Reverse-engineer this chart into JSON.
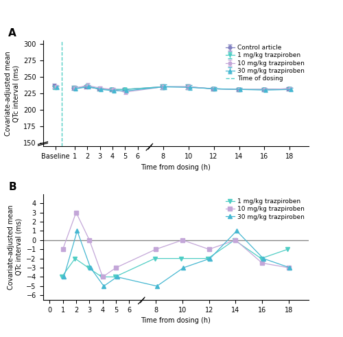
{
  "panel_A": {
    "x_hours": [
      1,
      2,
      3,
      4,
      5,
      8,
      10,
      12,
      14,
      16,
      18
    ],
    "x_baseline_pos": -0.5,
    "control": {
      "y": [
        233,
        235,
        232,
        231,
        231,
        235,
        235,
        232,
        231,
        231,
        232
      ],
      "yerr": [
        3.0,
        3.0,
        2.5,
        2.5,
        2.5,
        3.5,
        3.5,
        2.5,
        2.5,
        2.5,
        2.5
      ],
      "y_baseline": 236,
      "yerr_baseline": 3.5,
      "color": "#8080C0",
      "marker": "o"
    },
    "dose1": {
      "y": [
        233,
        236,
        232,
        231,
        231,
        235,
        235,
        232,
        231,
        231,
        232
      ],
      "yerr": [
        3.0,
        3.0,
        2.5,
        2.5,
        2.5,
        3.5,
        3.5,
        2.5,
        2.5,
        2.5,
        2.5
      ],
      "y_baseline": 234,
      "yerr_baseline": 3.0,
      "color": "#4ECDC4",
      "marker": "v"
    },
    "dose10": {
      "y": [
        233,
        237,
        233,
        231,
        227,
        235,
        235,
        232,
        231,
        231,
        232
      ],
      "yerr": [
        3.0,
        3.5,
        2.5,
        2.5,
        2.5,
        3.5,
        3.5,
        2.5,
        2.5,
        2.5,
        2.5
      ],
      "y_baseline": 235,
      "yerr_baseline": 3.0,
      "color": "#C3A6D8",
      "marker": "s"
    },
    "dose30": {
      "y": [
        232,
        235,
        231,
        229,
        229,
        235,
        234,
        232,
        231,
        230,
        231
      ],
      "yerr": [
        3.0,
        3.0,
        2.5,
        2.5,
        2.5,
        3.5,
        3.5,
        2.5,
        2.5,
        2.5,
        2.5
      ],
      "y_baseline": 234,
      "yerr_baseline": 3.0,
      "color": "#45B7D1",
      "marker": "^"
    },
    "ylim": [
      145,
      305
    ],
    "yticks": [
      150,
      175,
      200,
      225,
      250,
      275,
      300
    ],
    "ylabel": "Covariate-adjusted mean\nQTc interval (ms)",
    "xlabel": "Time from dosing (h)",
    "dosing_line_x": 0.0,
    "x_tick_positions": [
      -0.5,
      1,
      2,
      3,
      4,
      5,
      6,
      8,
      10,
      12,
      14,
      16,
      18
    ],
    "x_tick_labels": [
      "Baseline",
      "1",
      "2",
      "3",
      "4",
      "5",
      "6",
      "8",
      "10",
      "12",
      "14",
      "16",
      "18"
    ],
    "xlim": [
      -1.5,
      19.5
    ],
    "gap_start": 6.5,
    "gap_end": 7.5
  },
  "panel_B": {
    "x_hours": [
      1,
      2,
      3,
      4,
      5,
      8,
      10,
      12,
      14,
      16,
      18
    ],
    "dose1": {
      "y": [
        -4.0,
        -2.0,
        -3.0,
        -4.0,
        -4.0,
        -2.0,
        -2.0,
        -2.0,
        0.0,
        -2.0,
        -1.0
      ],
      "color": "#4ECDC4",
      "marker": "v"
    },
    "dose10": {
      "y": [
        -1.0,
        3.0,
        0.0,
        -4.0,
        -3.0,
        -1.0,
        0.0,
        -1.0,
        0.0,
        -2.5,
        -3.0
      ],
      "color": "#C3A6D8",
      "marker": "s"
    },
    "dose30": {
      "y": [
        -4.0,
        1.0,
        -3.0,
        -5.0,
        -4.0,
        -5.0,
        -3.0,
        -2.0,
        1.0,
        -2.0,
        -3.0
      ],
      "color": "#45B7D1",
      "marker": "^"
    },
    "ylim": [
      -6.5,
      5.0
    ],
    "yticks": [
      -6,
      -5,
      -4,
      -3,
      -2,
      -1,
      0,
      1,
      2,
      3,
      4
    ],
    "ylabel": "Covariate-adjusted mean\nQTc interval (ms)",
    "xlabel": "Time from dosing (h)",
    "x_tick_positions": [
      0,
      1,
      2,
      3,
      4,
      5,
      6,
      8,
      10,
      12,
      14,
      16,
      18
    ],
    "x_tick_labels": [
      "0",
      "1",
      "2",
      "3",
      "4",
      "5",
      "6",
      "8",
      "10",
      "12",
      "14",
      "16",
      "18"
    ],
    "xlim": [
      -0.5,
      19.5
    ],
    "gap_start": 6.5,
    "gap_end": 7.5
  },
  "labels_A": {
    "control": "Control article",
    "dose1": "1 mg/kg trazpiroben",
    "dose10": "10 mg/kg trazpiroben",
    "dose30": "30 mg/kg trazpiroben"
  },
  "labels_B": {
    "dose1": "1 mg/kg trazpiroben",
    "dose10": "10 mg/kg trazpiroben",
    "dose30": "30 mg/kg trazpiroben"
  },
  "dosing_line_color": "#4ECDC4",
  "zero_line_color": "#888888"
}
